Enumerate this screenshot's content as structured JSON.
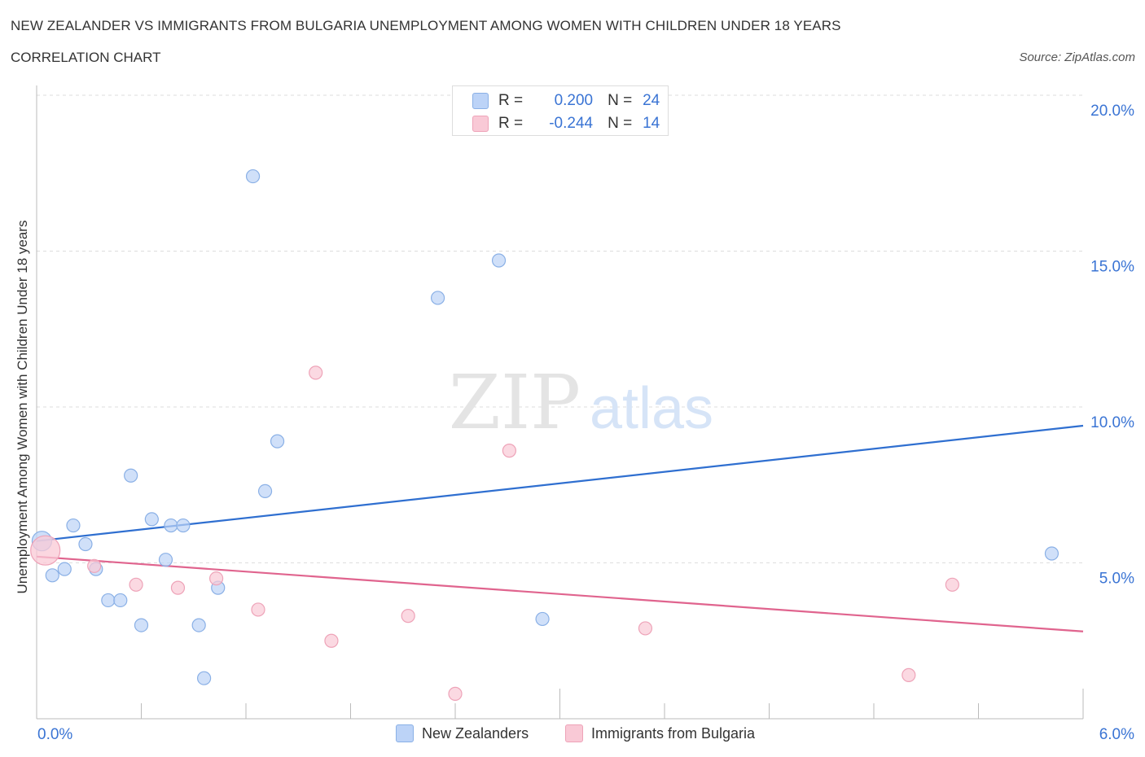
{
  "header": {
    "title": "NEW ZEALANDER VS IMMIGRANTS FROM BULGARIA UNEMPLOYMENT AMONG WOMEN WITH CHILDREN UNDER 18 YEARS",
    "subtitle": "CORRELATION CHART",
    "source": "Source: ZipAtlas.com"
  },
  "watermark": {
    "zip": "ZIP",
    "atlas": "atlas"
  },
  "legend": {
    "r_label": "R =",
    "n_label": "N =",
    "series": [
      {
        "r": "0.200",
        "n": "24"
      },
      {
        "r": "-0.244",
        "n": "14"
      }
    ]
  },
  "colors": {
    "blue_fill": "#bcd3f7",
    "blue_stroke": "#8ab0e6",
    "blue_line": "#2f6fd0",
    "pink_fill": "#f9c9d6",
    "pink_stroke": "#eea3b8",
    "pink_line": "#e0648e",
    "axis_text": "#3a74d4",
    "grid": "#dddddd"
  },
  "chart_data": {
    "type": "scatter",
    "title": "NEW ZEALANDER VS IMMIGRANTS FROM BULGARIA UNEMPLOYMENT AMONG WOMEN WITH CHILDREN UNDER 18 YEARS",
    "xlabel": "",
    "ylabel": "Unemployment Among Women with Children Under 18 years",
    "xlim": [
      0,
      6
    ],
    "ylim": [
      0,
      20
    ],
    "x_tick_labels": [
      "0.0%",
      "6.0%"
    ],
    "y_ticks": [
      5,
      10,
      15,
      20
    ],
    "y_tick_labels": [
      "5.0%",
      "10.0%",
      "15.0%",
      "20.0%"
    ],
    "series": [
      {
        "name": "New Zealanders",
        "color": "blue",
        "points": [
          [
            0.03,
            5.7
          ],
          [
            0.09,
            4.6
          ],
          [
            0.16,
            4.8
          ],
          [
            0.21,
            6.2
          ],
          [
            0.28,
            5.6
          ],
          [
            0.34,
            4.8
          ],
          [
            0.41,
            3.8
          ],
          [
            0.48,
            3.8
          ],
          [
            0.54,
            7.8
          ],
          [
            0.6,
            3.0
          ],
          [
            0.66,
            6.4
          ],
          [
            0.74,
            5.1
          ],
          [
            0.77,
            6.2
          ],
          [
            0.84,
            6.2
          ],
          [
            0.93,
            3.0
          ],
          [
            0.96,
            1.3
          ],
          [
            1.04,
            4.2
          ],
          [
            1.24,
            17.4
          ],
          [
            1.31,
            7.3
          ],
          [
            1.38,
            8.9
          ],
          [
            2.3,
            13.5
          ],
          [
            2.65,
            14.7
          ],
          [
            2.9,
            3.2
          ],
          [
            5.82,
            5.3
          ]
        ],
        "trend": [
          [
            0,
            5.7
          ],
          [
            6,
            9.4
          ]
        ]
      },
      {
        "name": "Immigrants from Bulgaria",
        "color": "pink",
        "points": [
          [
            0.05,
            5.4
          ],
          [
            0.33,
            4.9
          ],
          [
            0.57,
            4.3
          ],
          [
            0.81,
            4.2
          ],
          [
            1.03,
            4.5
          ],
          [
            1.27,
            3.5
          ],
          [
            1.6,
            11.1
          ],
          [
            1.69,
            2.5
          ],
          [
            2.13,
            3.3
          ],
          [
            2.4,
            0.8
          ],
          [
            2.71,
            8.6
          ],
          [
            3.49,
            2.9
          ],
          [
            5.0,
            1.4
          ],
          [
            5.25,
            4.3
          ]
        ],
        "trend": [
          [
            0,
            5.2
          ],
          [
            6,
            2.8
          ]
        ]
      }
    ]
  }
}
